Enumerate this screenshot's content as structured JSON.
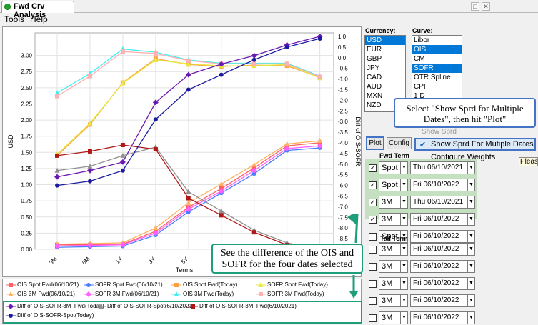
{
  "window": {
    "title": "Fwd Crv Analysis",
    "controls": [
      "□",
      "✕"
    ]
  },
  "menu": [
    "Tools",
    "Help"
  ],
  "currency": {
    "label": "Currency:",
    "items": [
      "USD",
      "EUR",
      "GBP",
      "JPY",
      "CAD",
      "AUD",
      "MXN",
      "NZD"
    ],
    "selected": "USD"
  },
  "curve": {
    "label": "Curve:",
    "items": [
      "Libor",
      "OIS",
      "CMT",
      "SOFR",
      "OTR Spline",
      "CPI",
      "1 D"
    ],
    "selected": [
      "OIS",
      "SOFR"
    ]
  },
  "buttons": {
    "plot": "Plot",
    "config": "Config"
  },
  "config_menu": {
    "items": [
      "Show Sprd",
      "Show Sprd For Mutiple Dates",
      "Configure Weights"
    ],
    "checked": "Show Sprd For Mutiple Dates",
    "partial_text": "Pleas"
  },
  "fwd_term": {
    "label": "Fwd Term",
    "rows": [
      {
        "checked": true,
        "term": "Spot",
        "date": "Thu 06/10/2021"
      },
      {
        "checked": true,
        "term": "Spot",
        "date": "Fri 06/10/2022"
      },
      {
        "checked": true,
        "term": "3M",
        "date": "Thu 06/10/2021"
      },
      {
        "checked": true,
        "term": "3M",
        "date": "Fri 06/10/2022"
      },
      {
        "checked": false,
        "term": "Spot",
        "date": "Fri 06/10/2022"
      }
    ]
  },
  "tail_term": {
    "label": "Tail Term",
    "rows": [
      {
        "checked": false,
        "term": "3M",
        "date": "Fri 06/10/2022"
      },
      {
        "checked": false,
        "term": "3M",
        "date": "Fri 06/10/2022"
      },
      {
        "checked": false,
        "term": "3M",
        "date": "Fri 06/10/2022"
      },
      {
        "checked": false,
        "term": "3M",
        "date": "Fri 06/10/2022"
      },
      {
        "checked": false,
        "term": "3M",
        "date": "Fri 06/10/2022"
      }
    ]
  },
  "callouts": {
    "top": "Select \"Show Sprd for Multiple Dates\", then hit \"Plot\"",
    "bottom": "See the difference of the OIS and SOFR for the four dates selected"
  },
  "colors": {
    "ois_spot_hist": "#ff6060",
    "sofr_spot_hist": "#4a7cff",
    "ois_spot_today": "#ffa040",
    "sofr_spot_today": "#e8e840",
    "ois_3m_hist": "#ffb060",
    "sofr_3m_hist": "#ff60ff",
    "ois_3m_today": "#40f0f0",
    "sofr_3m_today": "#ffb0b0",
    "diff_3m_today": "#6a1ab0",
    "diff_spot_hist": "#909090",
    "diff_3m_hist": "#b01818",
    "diff_spot_today": "#1a1aa0",
    "green_series": "#80ff40",
    "callout_border": "#4472c4",
    "bottom_callout_border": "#1e9e7a",
    "selection": "#0078d7"
  },
  "chart_data": {
    "type": "line",
    "xlabel": "Terms",
    "ylabel": "USD",
    "y2label": "Diff of OIS-SOFR",
    "categories": [
      "3M",
      "6M",
      "1Y",
      "3Y",
      "5Y",
      "7Y",
      "10Y",
      "20Y",
      "30Y"
    ],
    "ylim": [
      0,
      3.25
    ],
    "y2lim": [
      -9.0,
      1.0
    ],
    "yticks": [
      "0.00",
      "0.25",
      "0.50",
      "0.75",
      "1.00",
      "1.25",
      "1.50",
      "1.75",
      "2.00",
      "2.25",
      "2.50",
      "2.75",
      "3.00"
    ],
    "y2ticks": [
      "1.0",
      "0.5",
      "0.0",
      "-0.5",
      "-1.0",
      "-1.5",
      "-2.0",
      "-2.5",
      "-3.0",
      "-3.5",
      "-4.0",
      "-4.5",
      "-5.0",
      "-5.5",
      "-6.0",
      "-6.5",
      "-7.0",
      "-7.5",
      "-8.0",
      "-8.5",
      "-9.0"
    ],
    "series_left": [
      {
        "name": "OIS Spot Fwd(06/10/21)",
        "color": "#ff6060",
        "marker": "square",
        "values": [
          0.07,
          0.07,
          0.08,
          0.28,
          0.65,
          0.94,
          1.26,
          1.6,
          1.65
        ]
      },
      {
        "name": "SOFR Spot Fwd(06/10/21)",
        "color": "#4a7cff",
        "marker": "circle",
        "values": [
          0.03,
          0.04,
          0.05,
          0.22,
          0.58,
          0.87,
          1.17,
          1.53,
          1.57
        ]
      },
      {
        "name": "OIS Spot Fwd(Today)",
        "color": "#ffa040",
        "marker": "square",
        "values": [
          1.45,
          1.93,
          2.58,
          2.95,
          2.86,
          2.83,
          2.85,
          2.84,
          2.66
        ]
      },
      {
        "name": "SOFR Spot Fwd(Today)",
        "color": "#e8e840",
        "marker": "triangle",
        "values": [
          1.47,
          1.95,
          2.57,
          2.93,
          2.87,
          2.84,
          2.84,
          2.86,
          2.65
        ]
      },
      {
        "name": "OIS 3M Fwd(06/10/21)",
        "color": "#ffb060",
        "marker": "triangle",
        "values": [
          0.08,
          0.09,
          0.1,
          0.33,
          0.72,
          1.01,
          1.31,
          1.63,
          1.68
        ]
      },
      {
        "name": "SOFR 3M Fwd(06/10/21)",
        "color": "#ff60ff",
        "marker": "diamond",
        "values": [
          0.05,
          0.06,
          0.07,
          0.25,
          0.62,
          0.9,
          1.22,
          1.56,
          1.6
        ]
      },
      {
        "name": "OIS 3M Fwd(Today)",
        "color": "#40f0f0",
        "marker": "triangle",
        "values": [
          2.42,
          2.72,
          3.1,
          3.05,
          2.93,
          2.88,
          2.88,
          2.88,
          2.68
        ]
      },
      {
        "name": "SOFR 3M Fwd(Today)",
        "color": "#ffb0b0",
        "marker": "square",
        "values": [
          2.37,
          2.68,
          3.06,
          3.03,
          2.92,
          2.87,
          2.87,
          2.87,
          2.67
        ]
      }
    ],
    "series_right": [
      {
        "name": "Diff of OIS-SOFR-3M_Fwd(Today)",
        "color": "#6a1ab0",
        "marker": "diamond",
        "values": [
          -5.6,
          -5.3,
          -4.9,
          -2.1,
          -0.8,
          -0.3,
          0.1,
          0.6,
          1.0
        ]
      },
      {
        "name": "Diff of OIS-SOFR-Spot(6/10/2021)",
        "color": "#909090",
        "marker": "triangle",
        "values": [
          -5.3,
          -5.1,
          -4.6,
          -4.2,
          -6.3,
          -7.2,
          -8.1,
          -8.7,
          -9.0
        ]
      },
      {
        "name": "Diff of OIS-SOFR-3M_Fwd(6/10/2021)",
        "color": "#b01818",
        "marker": "square",
        "values": [
          -4.6,
          -4.4,
          -4.1,
          -4.3,
          -6.6,
          -7.4,
          -8.2,
          -8.8,
          -9.3
        ]
      },
      {
        "name": "Diff of OIS-SOFR-Spot(Today)",
        "color": "#1a1aa0",
        "marker": "circle",
        "values": [
          -6.0,
          -5.8,
          -5.3,
          -2.9,
          -1.5,
          -0.8,
          -0.1,
          0.5,
          0.9
        ]
      }
    ],
    "grid": true,
    "legend_placement": "bottom"
  }
}
